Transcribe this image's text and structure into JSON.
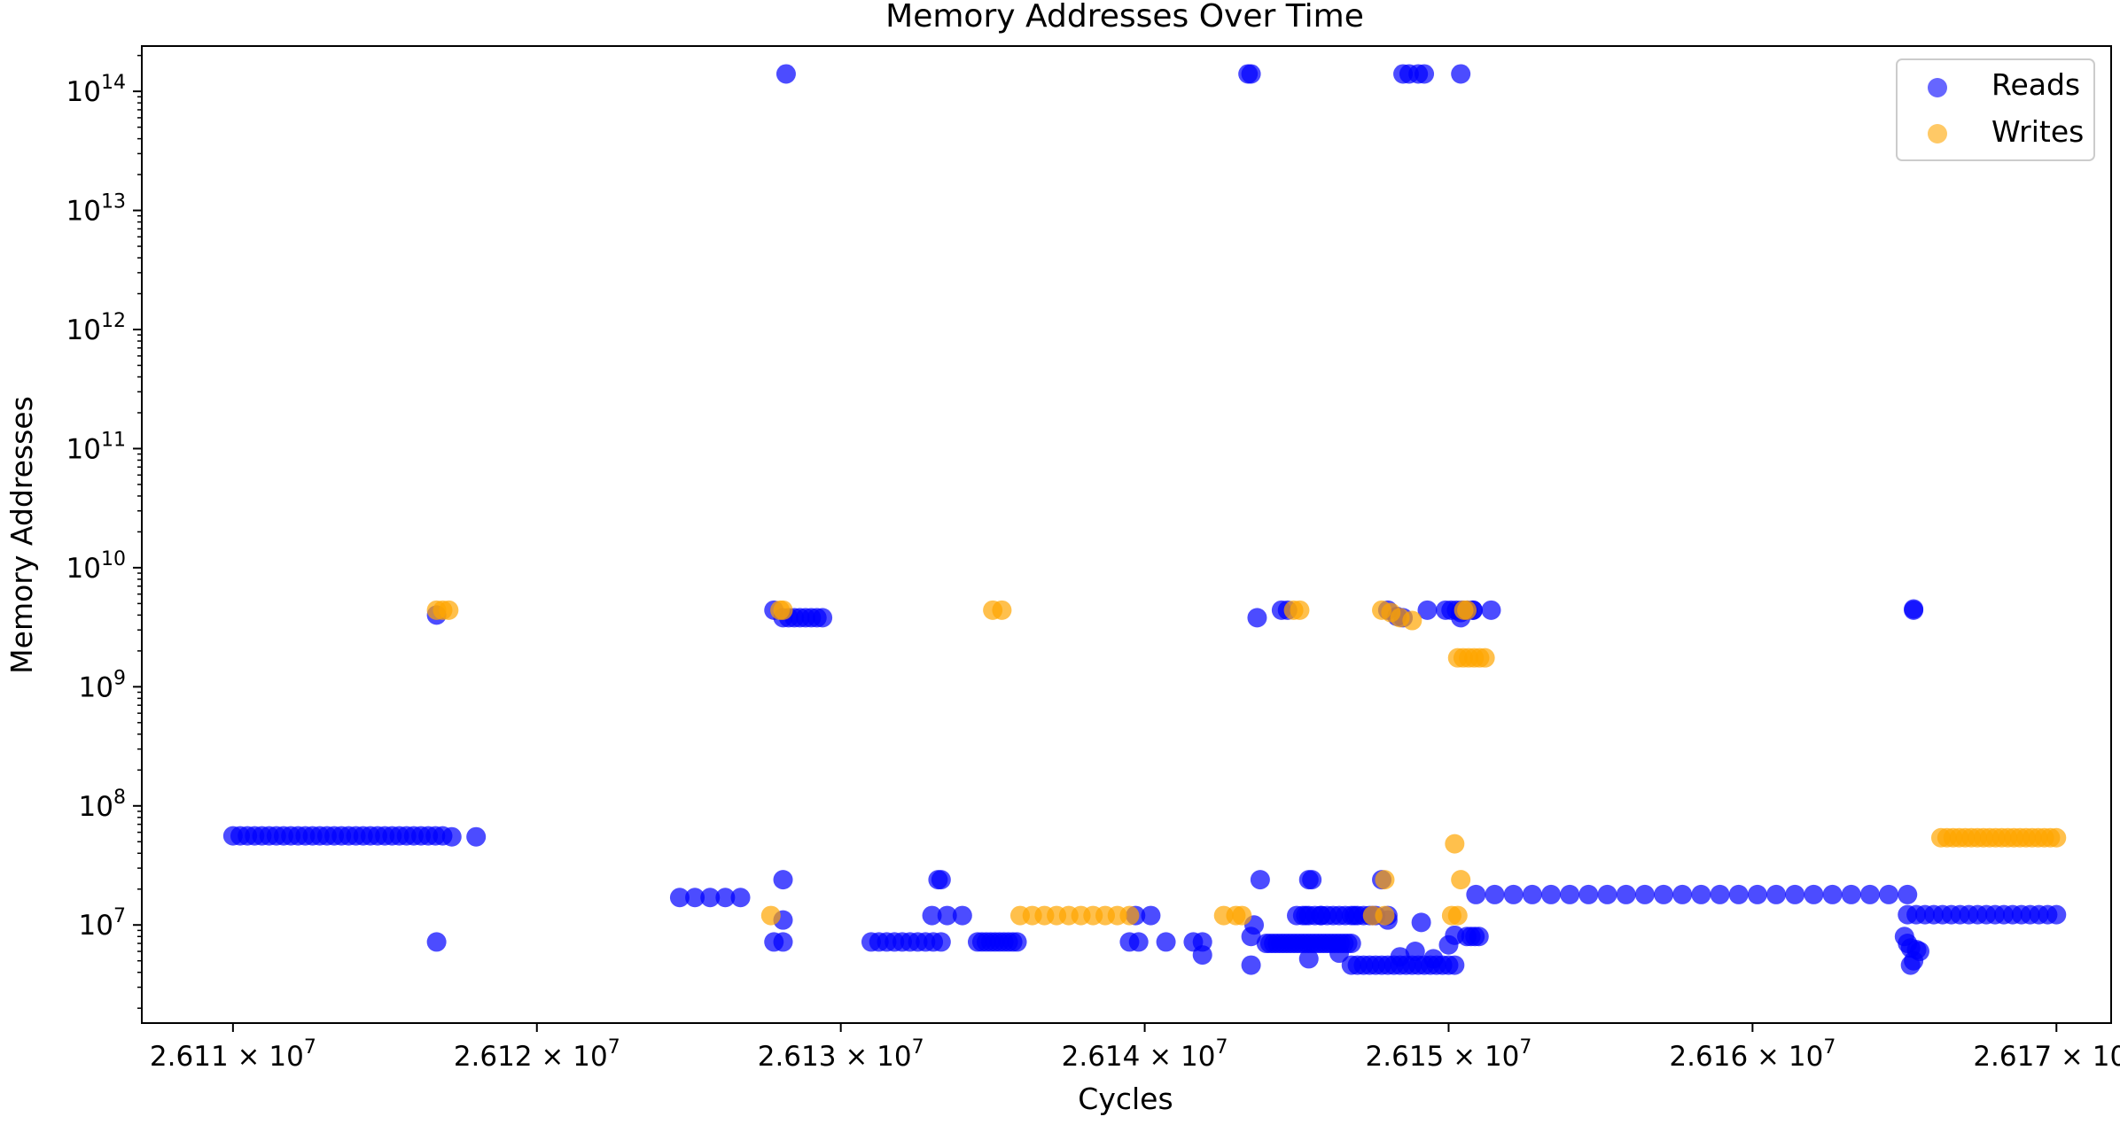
{
  "chart_data": {
    "type": "scatter",
    "title": "Memory Addresses Over Time",
    "xlabel": "Cycles",
    "ylabel": "Memory Addresses",
    "x_scale": "linear",
    "y_scale": "log",
    "xlim": [
      26107000,
      26171800
    ],
    "ylim": [
      1500000.0,
      240000000000000.0
    ],
    "x_ticks": [
      {
        "value": 26110000,
        "label_base": "2.611",
        "label_exp": "7"
      },
      {
        "value": 26120000,
        "label_base": "2.612",
        "label_exp": "7"
      },
      {
        "value": 26130000,
        "label_base": "2.613",
        "label_exp": "7"
      },
      {
        "value": 26140000,
        "label_base": "2.614",
        "label_exp": "7"
      },
      {
        "value": 26150000,
        "label_base": "2.615",
        "label_exp": "7"
      },
      {
        "value": 26160000,
        "label_base": "2.616",
        "label_exp": "7"
      },
      {
        "value": 26170000,
        "label_base": "2.617",
        "label_exp": "7"
      }
    ],
    "y_ticks": [
      {
        "value": 10000000.0,
        "exp": "7"
      },
      {
        "value": 100000000.0,
        "exp": "8"
      },
      {
        "value": 1000000000.0,
        "exp": "9"
      },
      {
        "value": 10000000000.0,
        "exp": "10"
      },
      {
        "value": 100000000000.0,
        "exp": "11"
      },
      {
        "value": 1000000000000.0,
        "exp": "12"
      },
      {
        "value": 10000000000000.0,
        "exp": "13"
      },
      {
        "value": 100000000000000.0,
        "exp": "14"
      }
    ],
    "legend_position": "top-right",
    "grid": false,
    "series": [
      {
        "name": "Reads",
        "color": "#0000ff",
        "segments": [
          {
            "x_start": 26110000,
            "x_end": 26116900,
            "count": 30,
            "y": 56000000.0
          },
          {
            "x_start": 26124700,
            "x_end": 26126700,
            "count": 5,
            "y": 17000000.0
          },
          {
            "x_start": 26128100,
            "x_end": 26129400,
            "count": 8,
            "y": 3800000000.0
          },
          {
            "x_start": 26131000,
            "x_end": 26133300,
            "count": 10,
            "y": 7200000.0
          },
          {
            "x_start": 26134500,
            "x_end": 26135800,
            "count": 10,
            "y": 7200000.0
          },
          {
            "x_start": 26144000,
            "x_end": 26146800,
            "count": 24,
            "y": 7000000.0
          },
          {
            "x_start": 26145000,
            "x_end": 26147600,
            "count": 14,
            "y": 12000000.0
          },
          {
            "x_start": 26146800,
            "x_end": 26150200,
            "count": 18,
            "y": 4600000.0
          },
          {
            "x_start": 26149900,
            "x_end": 26150800,
            "count": 6,
            "y": 4400000000.0
          },
          {
            "x_start": 26150600,
            "x_end": 26151000,
            "count": 4,
            "y": 8000000.0
          },
          {
            "x_start": 26150900,
            "x_end": 26165100,
            "count": 24,
            "y": 18000000.0
          },
          {
            "x_start": 26165100,
            "x_end": 26170000,
            "count": 18,
            "y": 12200000.0
          }
        ],
        "points": [
          [
            26117200,
            55000000.0
          ],
          [
            26118000,
            55000000.0
          ],
          [
            26116700,
            7200000.0
          ],
          [
            26116700,
            4000000000.0
          ],
          [
            26127800,
            7200000.0
          ],
          [
            26128100,
            7200000.0
          ],
          [
            26128100,
            11000000.0
          ],
          [
            26128100,
            24000000.0
          ],
          [
            26128200,
            140000000000000.0
          ],
          [
            26127800,
            4400000000.0
          ],
          [
            26133200,
            24000000.0
          ],
          [
            26133300,
            24000000.0
          ],
          [
            26133000,
            12000000.0
          ],
          [
            26133500,
            12000000.0
          ],
          [
            26134000,
            12000000.0
          ],
          [
            26139700,
            12000000.0
          ],
          [
            26140200,
            12000000.0
          ],
          [
            26139500,
            7200000.0
          ],
          [
            26139800,
            7200000.0
          ],
          [
            26140700,
            7200000.0
          ],
          [
            26141600,
            7200000.0
          ],
          [
            26141900,
            7200000.0
          ],
          [
            26141900,
            5600000.0
          ],
          [
            26143400,
            140000000000000.0
          ],
          [
            26143500,
            140000000000000.0
          ],
          [
            26143500,
            8000000.0
          ],
          [
            26143600,
            10000000.0
          ],
          [
            26143500,
            4600000.0
          ],
          [
            26143700,
            3800000000.0
          ],
          [
            26143800,
            24000000.0
          ],
          [
            26144500,
            4400000000.0
          ],
          [
            26144700,
            4400000000.0
          ],
          [
            26145400,
            24000000.0
          ],
          [
            26145500,
            24000000.0
          ],
          [
            26145300,
            12000000.0
          ],
          [
            26145800,
            12000000.0
          ],
          [
            26145400,
            5200000.0
          ],
          [
            26146400,
            5800000.0
          ],
          [
            26146900,
            12000000.0
          ],
          [
            26147500,
            12000000.0
          ],
          [
            26147800,
            24000000.0
          ],
          [
            26148000,
            12000000.0
          ],
          [
            26148000,
            11000000.0
          ],
          [
            26149100,
            10500000.0
          ],
          [
            26148000,
            4400000000.0
          ],
          [
            26148300,
            3900000000.0
          ],
          [
            26148500,
            3800000000.0
          ],
          [
            26149300,
            4400000000.0
          ],
          [
            26148500,
            140000000000000.0
          ],
          [
            26148700,
            140000000000000.0
          ],
          [
            26149000,
            140000000000000.0
          ],
          [
            26149200,
            140000000000000.0
          ],
          [
            26150400,
            140000000000000.0
          ],
          [
            26150400,
            3800000000.0
          ],
          [
            26150400,
            4200000000.0
          ],
          [
            26150800,
            4400000000.0
          ],
          [
            26151400,
            4400000000.0
          ],
          [
            26148400,
            5400000.0
          ],
          [
            26148900,
            6000000.0
          ],
          [
            26149500,
            5200000.0
          ],
          [
            26150000,
            6800000.0
          ],
          [
            26150200,
            8200000.0
          ],
          [
            26165000,
            8000000.0
          ],
          [
            26165100,
            7000000.0
          ],
          [
            26165200,
            6400000.0
          ],
          [
            26165400,
            6200000.0
          ],
          [
            26165500,
            6000000.0
          ],
          [
            26165200,
            4600000.0
          ],
          [
            26165300,
            5000000.0
          ],
          [
            26165300,
            4400000000.0
          ],
          [
            26165300,
            4500000000.0
          ]
        ]
      },
      {
        "name": "Writes",
        "color": "#ffa500",
        "segments": [
          {
            "x_start": 26135900,
            "x_end": 26139500,
            "count": 10,
            "y": 12000000.0
          },
          {
            "x_start": 26166200,
            "x_end": 26170000,
            "count": 20,
            "y": 54000000.0
          },
          {
            "x_start": 26150300,
            "x_end": 26151200,
            "count": 6,
            "y": 1750000000.0
          }
        ],
        "points": [
          [
            26116700,
            4400000000.0
          ],
          [
            26116900,
            4400000000.0
          ],
          [
            26117100,
            4400000000.0
          ],
          [
            26127700,
            12000000.0
          ],
          [
            26128000,
            4400000000.0
          ],
          [
            26128100,
            4400000000.0
          ],
          [
            26135000,
            4400000000.0
          ],
          [
            26135300,
            4400000000.0
          ],
          [
            26142600,
            12000000.0
          ],
          [
            26143000,
            12000000.0
          ],
          [
            26143200,
            12000000.0
          ],
          [
            26144900,
            4400000000.0
          ],
          [
            26145100,
            4400000000.0
          ],
          [
            26147900,
            24000000.0
          ],
          [
            26147900,
            12000000.0
          ],
          [
            26147500,
            12000000.0
          ],
          [
            26147800,
            4400000000.0
          ],
          [
            26148100,
            4200000000.0
          ],
          [
            26148400,
            3800000000.0
          ],
          [
            26148800,
            3600000000.0
          ],
          [
            26150200,
            48000000.0
          ],
          [
            26150400,
            24000000.0
          ],
          [
            26150100,
            12000000.0
          ],
          [
            26150300,
            12000000.0
          ],
          [
            26150500,
            4400000000.0
          ],
          [
            26150600,
            4400000000.0
          ]
        ]
      }
    ]
  }
}
